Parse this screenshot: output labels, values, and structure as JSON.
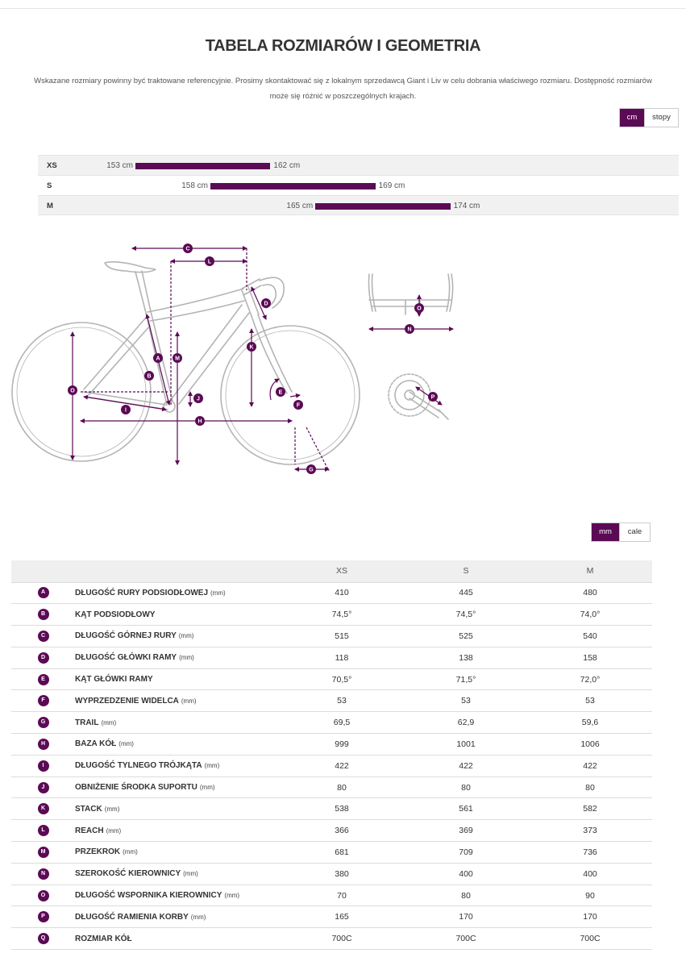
{
  "header": {
    "title": "TABELA ROZMIARÓW I GEOMETRIA",
    "intro": "Wskazane rozmiary powinny być traktowane referencyjnie. Prosimy skontaktować się z lokalnym sprzedawcą Giant i Liv w celu dobrania właściwego rozmiaru. Dostępność rozmiarów może się różnić w poszczególnych krajach."
  },
  "height_units": {
    "cm": "cm",
    "ft": "stopy",
    "selected": "cm"
  },
  "height_chart": [
    {
      "size": "XS",
      "min": 153,
      "max": 162,
      "min_label": "153 cm",
      "max_label": "162 cm"
    },
    {
      "size": "S",
      "min": 158,
      "max": 169,
      "min_label": "158 cm",
      "max_label": "169 cm"
    },
    {
      "size": "M",
      "min": 165,
      "max": 174,
      "min_label": "165 cm",
      "max_label": "174 cm"
    }
  ],
  "diagram_labels": [
    "A",
    "B",
    "C",
    "D",
    "E",
    "F",
    "G",
    "H",
    "I",
    "J",
    "K",
    "L",
    "M",
    "N",
    "O",
    "P"
  ],
  "geometry_units": {
    "mm": "mm",
    "in": "cale",
    "selected": "mm"
  },
  "geometry": {
    "sizes": [
      "XS",
      "S",
      "M"
    ],
    "rows": [
      {
        "badge": "A",
        "name": "DŁUGOŚĆ RURY PODSIODŁOWEJ",
        "unit": "(mm)",
        "values": [
          "410",
          "445",
          "480"
        ]
      },
      {
        "badge": "B",
        "name": "KĄT PODSIODŁOWY",
        "unit": "",
        "values": [
          "74,5°",
          "74,5°",
          "74,0°"
        ]
      },
      {
        "badge": "C",
        "name": "DŁUGOŚĆ GÓRNEJ RURY",
        "unit": "(mm)",
        "values": [
          "515",
          "525",
          "540"
        ]
      },
      {
        "badge": "D",
        "name": "DŁUGOŚĆ GŁÓWKI RAMY",
        "unit": "(mm)",
        "values": [
          "118",
          "138",
          "158"
        ]
      },
      {
        "badge": "E",
        "name": "KĄT GŁÓWKI RAMY",
        "unit": "",
        "values": [
          "70,5°",
          "71,5°",
          "72,0°"
        ]
      },
      {
        "badge": "F",
        "name": "WYPRZEDZENIE WIDELCA",
        "unit": "(mm)",
        "values": [
          "53",
          "53",
          "53"
        ]
      },
      {
        "badge": "G",
        "name": "TRAIL",
        "unit": "(mm)",
        "values": [
          "69,5",
          "62,9",
          "59,6"
        ]
      },
      {
        "badge": "H",
        "name": "BAZA KÓŁ",
        "unit": "(mm)",
        "values": [
          "999",
          "1001",
          "1006"
        ]
      },
      {
        "badge": "I",
        "name": "DŁUGOŚĆ TYLNEGO TRÓJKĄTA",
        "unit": "(mm)",
        "values": [
          "422",
          "422",
          "422"
        ]
      },
      {
        "badge": "J",
        "name": "OBNIŻENIE ŚRODKA SUPORTU",
        "unit": "(mm)",
        "values": [
          "80",
          "80",
          "80"
        ]
      },
      {
        "badge": "K",
        "name": "STACK",
        "unit": "(mm)",
        "values": [
          "538",
          "561",
          "582"
        ]
      },
      {
        "badge": "L",
        "name": "REACH",
        "unit": "(mm)",
        "values": [
          "366",
          "369",
          "373"
        ]
      },
      {
        "badge": "M",
        "name": "PRZEKROK",
        "unit": "(mm)",
        "values": [
          "681",
          "709",
          "736"
        ]
      },
      {
        "badge": "N",
        "name": "SZEROKOŚĆ KIEROWNICY",
        "unit": "(mm)",
        "values": [
          "380",
          "400",
          "400"
        ]
      },
      {
        "badge": "O",
        "name": "DŁUGOŚĆ WSPORNIKA KIEROWNICY",
        "unit": "(mm)",
        "values": [
          "70",
          "80",
          "90"
        ]
      },
      {
        "badge": "P",
        "name": "DŁUGOŚĆ RAMIENIA KORBY",
        "unit": "(mm)",
        "values": [
          "165",
          "170",
          "170"
        ]
      },
      {
        "badge": "Q",
        "name": "ROZMIAR KÓŁ",
        "unit": "",
        "values": [
          "700C",
          "700C",
          "700C"
        ]
      }
    ]
  },
  "colors": {
    "accent": "#5b0a55",
    "bike_line": "#b4b4b4"
  }
}
